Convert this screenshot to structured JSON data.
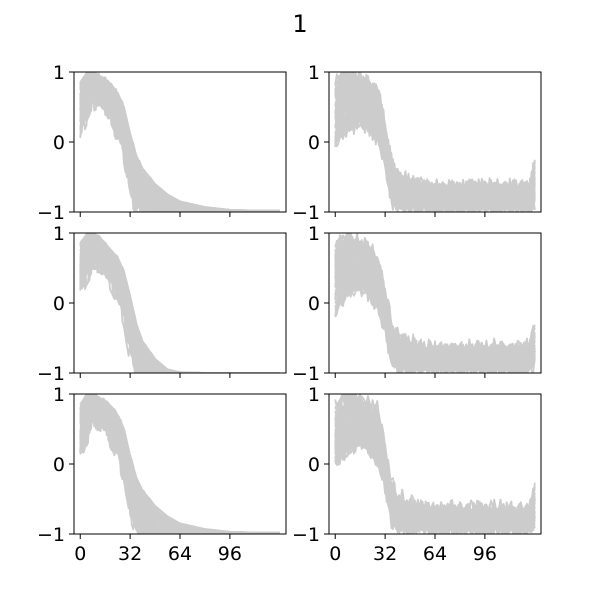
{
  "figure_title": "1",
  "chart_data": [
    {
      "type": "line",
      "panel": "r1c1",
      "xlim": [
        -4,
        132
      ],
      "ylim": [
        -1,
        1
      ],
      "xticks": [
        0,
        32,
        64,
        96
      ],
      "yticks": [
        -1,
        0,
        1
      ],
      "xtick_labels": [
        "",
        "",
        "",
        ""
      ],
      "ytick_labels": [
        "−1",
        "0",
        "1"
      ],
      "series_color": "#cccccc",
      "series_count": 40,
      "grid": false,
      "series": [
        {
          "x": [
            0,
            4,
            8,
            12,
            16,
            20,
            24,
            28,
            32,
            36,
            40,
            48,
            56,
            64,
            80,
            96,
            112,
            128
          ],
          "y": [
            0.85,
            0.98,
            1.0,
            0.95,
            0.9,
            0.82,
            0.7,
            0.5,
            0.12,
            -0.2,
            -0.38,
            -0.6,
            -0.75,
            -0.85,
            -0.93,
            -0.97,
            -0.98,
            -0.98
          ]
        },
        {
          "x": [
            0,
            4,
            8,
            12,
            16,
            20,
            24,
            28,
            32,
            36,
            40,
            48,
            56,
            64,
            80,
            96,
            112,
            128
          ],
          "y": [
            0.3,
            0.55,
            0.75,
            0.8,
            0.7,
            0.5,
            0.3,
            0.0,
            -0.5,
            -0.8,
            -0.95,
            -1.0,
            -1.0,
            -1.0,
            -1.0,
            -1.0,
            -1.0,
            -1.0
          ]
        }
      ]
    },
    {
      "type": "line",
      "panel": "r1c2",
      "xlim": [
        -4,
        132
      ],
      "ylim": [
        -1,
        1
      ],
      "xticks": [
        0,
        32,
        64,
        96
      ],
      "yticks": [
        -1,
        0,
        1
      ],
      "xtick_labels": [
        "",
        "",
        "",
        ""
      ],
      "ytick_labels": [
        "−1",
        "0",
        "1"
      ],
      "series_color": "#cccccc",
      "series_count": 40,
      "grid": false,
      "series": [
        {
          "x": [
            0,
            4,
            8,
            12,
            16,
            20,
            24,
            28,
            32,
            36,
            40,
            48,
            56,
            64,
            80,
            96,
            112,
            124,
            128
          ],
          "y": [
            0.8,
            0.95,
            0.98,
            0.95,
            0.9,
            0.85,
            0.8,
            0.7,
            0.2,
            -0.3,
            -0.5,
            -0.6,
            -0.65,
            -0.68,
            -0.68,
            -0.68,
            -0.68,
            -0.68,
            -0.35
          ]
        },
        {
          "x": [
            0,
            4,
            8,
            12,
            16,
            20,
            24,
            28,
            32,
            36,
            40,
            48,
            56,
            64,
            80,
            96,
            112,
            124,
            128
          ],
          "y": [
            0.0,
            0.1,
            0.2,
            0.25,
            0.3,
            0.25,
            0.1,
            0.0,
            -0.3,
            -0.8,
            -0.9,
            -0.9,
            -0.88,
            -0.9,
            -0.9,
            -0.9,
            -0.9,
            -0.9,
            -0.85
          ]
        }
      ]
    },
    {
      "type": "line",
      "panel": "r2c1",
      "xlim": [
        -4,
        132
      ],
      "ylim": [
        -1,
        1
      ],
      "xticks": [
        0,
        32,
        64,
        96
      ],
      "yticks": [
        -1,
        0,
        1
      ],
      "xtick_labels": [
        "",
        "",
        "",
        ""
      ],
      "ytick_labels": [
        "−1",
        "0",
        "1"
      ],
      "series_color": "#cccccc",
      "series_count": 40,
      "grid": false,
      "series": [
        {
          "x": [
            0,
            4,
            8,
            12,
            16,
            20,
            24,
            28,
            32,
            36,
            40,
            48,
            56,
            64,
            80,
            96,
            112,
            128
          ],
          "y": [
            0.85,
            0.98,
            1.0,
            0.95,
            0.85,
            0.75,
            0.65,
            0.45,
            0.1,
            -0.3,
            -0.55,
            -0.8,
            -0.95,
            -0.99,
            -1.0,
            -1.0,
            -1.0,
            -1.0
          ]
        },
        {
          "x": [
            0,
            4,
            8,
            12,
            16,
            20,
            24,
            28,
            32,
            36,
            40,
            48,
            56,
            64,
            80,
            96,
            112,
            128
          ],
          "y": [
            0.3,
            0.55,
            0.7,
            0.75,
            0.65,
            0.45,
            0.25,
            -0.05,
            -0.6,
            -0.9,
            -1.0,
            -1.0,
            -1.0,
            -1.0,
            -1.0,
            -1.0,
            -1.0,
            -1.0
          ]
        }
      ]
    },
    {
      "type": "line",
      "panel": "r2c2",
      "xlim": [
        -4,
        132
      ],
      "ylim": [
        -1,
        1
      ],
      "xticks": [
        0,
        32,
        64,
        96
      ],
      "yticks": [
        -1,
        0,
        1
      ],
      "xtick_labels": [
        "",
        "",
        "",
        ""
      ],
      "ytick_labels": [
        "−1",
        "0",
        "1"
      ],
      "series_color": "#cccccc",
      "series_count": 40,
      "grid": false,
      "series": [
        {
          "x": [
            0,
            4,
            8,
            12,
            16,
            20,
            24,
            28,
            32,
            36,
            40,
            48,
            56,
            64,
            80,
            96,
            112,
            124,
            128
          ],
          "y": [
            0.8,
            0.92,
            0.95,
            0.9,
            0.85,
            0.8,
            0.7,
            0.55,
            0.15,
            -0.3,
            -0.5,
            -0.6,
            -0.65,
            -0.68,
            -0.68,
            -0.68,
            -0.68,
            -0.68,
            -0.35
          ]
        },
        {
          "x": [
            0,
            4,
            8,
            12,
            16,
            20,
            24,
            28,
            32,
            36,
            40,
            48,
            56,
            64,
            80,
            96,
            112,
            124,
            128
          ],
          "y": [
            -0.1,
            0.05,
            0.15,
            0.2,
            0.25,
            0.2,
            0.05,
            -0.1,
            -0.35,
            -0.8,
            -0.9,
            -0.9,
            -0.88,
            -0.9,
            -0.9,
            -0.9,
            -0.9,
            -0.9,
            -0.85
          ]
        }
      ]
    },
    {
      "type": "line",
      "panel": "r3c1",
      "xlim": [
        -4,
        132
      ],
      "ylim": [
        -1,
        1
      ],
      "xticks": [
        0,
        32,
        64,
        96
      ],
      "yticks": [
        -1,
        0,
        1
      ],
      "xtick_labels": [
        "0",
        "32",
        "64",
        "96"
      ],
      "ytick_labels": [
        "−1",
        "0",
        "1"
      ],
      "series_color": "#cccccc",
      "series_count": 40,
      "grid": false,
      "series": [
        {
          "x": [
            0,
            4,
            8,
            12,
            16,
            20,
            24,
            28,
            32,
            36,
            40,
            48,
            56,
            64,
            80,
            96,
            112,
            128
          ],
          "y": [
            0.85,
            0.98,
            1.0,
            0.95,
            0.9,
            0.82,
            0.7,
            0.5,
            0.12,
            -0.2,
            -0.38,
            -0.6,
            -0.75,
            -0.85,
            -0.93,
            -0.97,
            -0.98,
            -0.98
          ]
        },
        {
          "x": [
            0,
            4,
            8,
            12,
            16,
            20,
            24,
            28,
            32,
            36,
            40,
            48,
            56,
            64,
            80,
            96,
            112,
            128
          ],
          "y": [
            0.3,
            0.55,
            0.75,
            0.8,
            0.7,
            0.5,
            0.3,
            0.0,
            -0.5,
            -0.8,
            -0.95,
            -1.0,
            -1.0,
            -1.0,
            -1.0,
            -1.0,
            -1.0,
            -1.0
          ]
        }
      ]
    },
    {
      "type": "line",
      "panel": "r3c2",
      "xlim": [
        -4,
        132
      ],
      "ylim": [
        -1,
        1
      ],
      "xticks": [
        0,
        32,
        64,
        96
      ],
      "yticks": [
        -1,
        0,
        1
      ],
      "xtick_labels": [
        "0",
        "32",
        "64",
        "96"
      ],
      "ytick_labels": [
        "−1",
        "0",
        "1"
      ],
      "series_color": "#cccccc",
      "series_count": 40,
      "grid": false,
      "series": [
        {
          "x": [
            0,
            4,
            8,
            12,
            16,
            20,
            24,
            28,
            32,
            36,
            40,
            48,
            56,
            64,
            80,
            96,
            112,
            124,
            128
          ],
          "y": [
            0.8,
            0.95,
            0.98,
            0.95,
            0.9,
            0.85,
            0.8,
            0.7,
            0.2,
            -0.3,
            -0.5,
            -0.6,
            -0.65,
            -0.68,
            -0.68,
            -0.68,
            -0.68,
            -0.68,
            -0.35
          ]
        },
        {
          "x": [
            0,
            4,
            8,
            12,
            16,
            20,
            24,
            28,
            32,
            36,
            40,
            48,
            56,
            64,
            80,
            96,
            112,
            124,
            128
          ],
          "y": [
            0.0,
            0.1,
            0.2,
            0.25,
            0.3,
            0.25,
            0.1,
            0.0,
            -0.3,
            -0.8,
            -0.9,
            -0.9,
            -0.88,
            -0.9,
            -0.9,
            -0.9,
            -0.9,
            -0.9,
            -0.85
          ]
        }
      ]
    }
  ]
}
